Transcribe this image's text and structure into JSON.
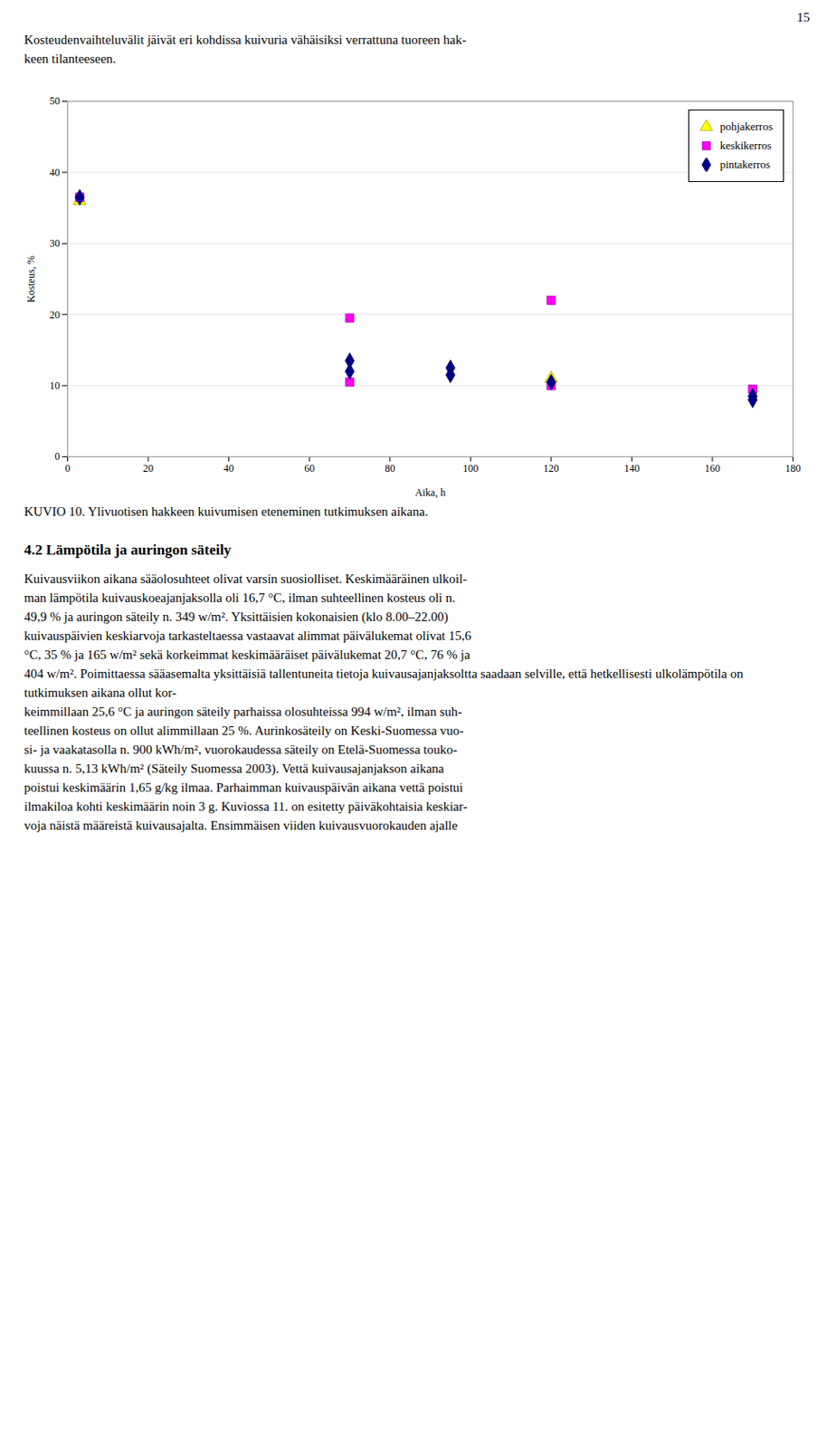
{
  "page_number": "15",
  "text_before": [
    "Kosteudenvaihteluvälit jäivät eri kohdissa kuivuria vähäisiksi verrattuna tuoreen hak-",
    "keen tilanteeseen."
  ],
  "chart_data": {
    "type": "scatter",
    "xlabel": "Aika, h",
    "ylabel": "Kosteus, %",
    "xlim": [
      0,
      180
    ],
    "ylim": [
      0,
      50
    ],
    "xticks": [
      0,
      20,
      40,
      60,
      80,
      100,
      120,
      140,
      160,
      180
    ],
    "yticks": [
      0,
      10,
      20,
      30,
      40,
      50
    ],
    "grid": "y",
    "legend": "upper right",
    "series": [
      {
        "name": "pohjakerros",
        "color": "#FFFF00",
        "marker": "triangle",
        "x": [
          3,
          120
        ],
        "values": [
          36,
          11
        ]
      },
      {
        "name": "keskikerros",
        "color": "#FF00FF",
        "marker": "square",
        "x": [
          3,
          70,
          70,
          120,
          120,
          170
        ],
        "values": [
          36.5,
          19.5,
          10.5,
          22,
          10,
          9.5
        ]
      },
      {
        "name": "pintakerros",
        "color": "#00008B",
        "marker": "diamond",
        "x": [
          3,
          70,
          70,
          95,
          95,
          120,
          170,
          170
        ],
        "values": [
          36.5,
          13.5,
          12,
          12.5,
          11.5,
          10.5,
          8.5,
          8
        ]
      }
    ]
  },
  "caption": "KUVIO 10. Ylivuotisen hakkeen kuivumisen eteneminen tutkimuksen aikana.",
  "section_title": "4.2 Lämpötila ja auringon säteily",
  "body_lines": [
    "Kuivausviikon aikana sääolosuhteet olivat varsin suosiolliset. Keskimääräinen ulkoil-",
    "man lämpötila kuivauskoeajanjaksolla oli 16,7 °C, ilman suhteellinen kosteus oli n.",
    "49,9 % ja auringon säteily n. 349 w/m². Yksittäisien kokonaisien (klo 8.00–22.00)",
    "kuivauspäivien keskiarvoja tarkasteltaessa vastaavat alimmat päivälukemat olivat 15,6",
    "°C, 35 % ja 165 w/m² sekä korkeimmat keskimääräiset päivälukemat 20,7 °C, 76 % ja",
    "404 w/m². Poimittaessa sääasemalta yksittäisiä tallentuneita tietoja kuivausajanjaksoltta saadaan selville, että hetkellisesti ulkolämpötila on tutkimuksen aikana ollut kor-",
    "keimmillaan 25,6 °C ja auringon säteily parhaissa olosuhteissa 994 w/m², ilman suh-",
    "teellinen kosteus on ollut alimmillaan 25 %. Aurinkosäteily on Keski-Suomessa vuo-",
    "si- ja vaakatasolla n. 900 kWh/m², vuorokaudessa säteily on Etelä-Suomessa touko-",
    "kuussa n. 5,13 kWh/m² (Säteily Suomessa 2003). Vettä kuivausajanjakson aikana",
    "poistui keskimäärin 1,65 g/kg ilmaa. Parhaimman kuivauspäivän aikana vettä poistui",
    "ilmakiloa kohti keskimäärin noin 3 g. Kuviossa 11. on esitetty päiväkohtaisia keskiar-",
    "voja näistä määreistä kuivausajalta. Ensimmäisen viiden kuivausvuorokauden ajalle"
  ]
}
